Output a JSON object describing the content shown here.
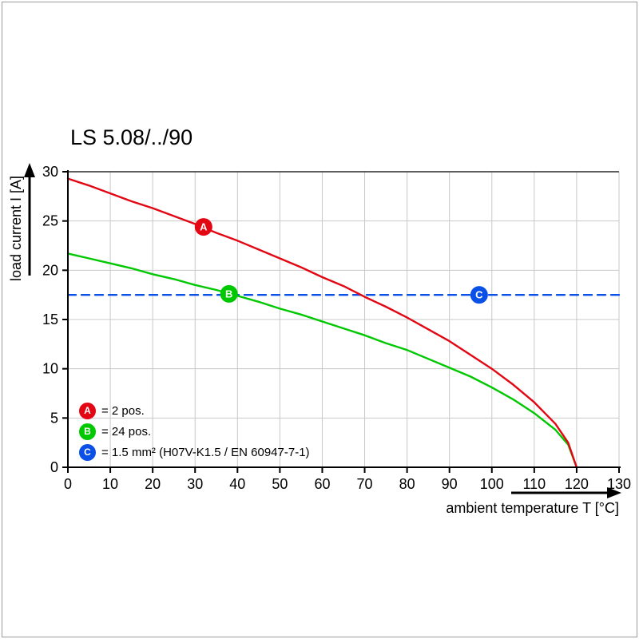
{
  "chart_data": {
    "type": "line",
    "title": "LS 5.08/../90",
    "xlabel": "ambient temperature T [°C]",
    "ylabel": "load current I [A]",
    "xlim": [
      0,
      130
    ],
    "ylim": [
      0,
      30
    ],
    "x_ticks": [
      0,
      10,
      20,
      30,
      40,
      50,
      60,
      70,
      80,
      90,
      100,
      110,
      120,
      130
    ],
    "y_ticks": [
      0,
      5,
      10,
      15,
      20,
      25,
      30
    ],
    "grid": true,
    "legend_position": "bottom-left-inside",
    "grid_color": "#c8c8c8",
    "axis_color": "#000000",
    "series": [
      {
        "name": "A",
        "label": "= 2 pos.",
        "color": "#e30613",
        "line_style": "solid",
        "marker": {
          "x": 32,
          "y": 24.4
        },
        "points": [
          [
            0,
            29.3
          ],
          [
            5,
            28.6
          ],
          [
            10,
            27.8
          ],
          [
            15,
            27
          ],
          [
            20,
            26.3
          ],
          [
            25,
            25.5
          ],
          [
            30,
            24.7
          ],
          [
            35,
            23.8
          ],
          [
            40,
            23
          ],
          [
            45,
            22.1
          ],
          [
            50,
            21.2
          ],
          [
            55,
            20.3
          ],
          [
            60,
            19.3
          ],
          [
            65,
            18.4
          ],
          [
            70,
            17.3
          ],
          [
            75,
            16.3
          ],
          [
            80,
            15.2
          ],
          [
            85,
            14
          ],
          [
            90,
            12.8
          ],
          [
            95,
            11.4
          ],
          [
            100,
            10
          ],
          [
            105,
            8.4
          ],
          [
            110,
            6.6
          ],
          [
            115,
            4.4
          ],
          [
            118,
            2.5
          ],
          [
            120,
            0
          ]
        ]
      },
      {
        "name": "B",
        "label": "= 24 pos.",
        "color": "#00c800",
        "line_style": "solid",
        "marker": {
          "x": 38,
          "y": 17.6
        },
        "points": [
          [
            0,
            21.7
          ],
          [
            5,
            21.2
          ],
          [
            10,
            20.7
          ],
          [
            15,
            20.2
          ],
          [
            20,
            19.6
          ],
          [
            25,
            19.1
          ],
          [
            30,
            18.5
          ],
          [
            35,
            18
          ],
          [
            40,
            17.4
          ],
          [
            45,
            16.8
          ],
          [
            50,
            16.1
          ],
          [
            55,
            15.5
          ],
          [
            60,
            14.8
          ],
          [
            65,
            14.1
          ],
          [
            70,
            13.4
          ],
          [
            75,
            12.6
          ],
          [
            80,
            11.9
          ],
          [
            85,
            11
          ],
          [
            90,
            10.1
          ],
          [
            95,
            9.2
          ],
          [
            100,
            8.1
          ],
          [
            105,
            6.9
          ],
          [
            110,
            5.5
          ],
          [
            115,
            3.8
          ],
          [
            118,
            2.3
          ],
          [
            120,
            0
          ]
        ]
      },
      {
        "name": "C",
        "label": "= 1.5 mm² (H07V-K1.5 / EN 60947-7-1)",
        "color": "#0a50e6",
        "line_style": "dashed",
        "marker": {
          "x": 97,
          "y": 17.5
        },
        "points": [
          [
            0,
            17.5
          ],
          [
            130,
            17.5
          ]
        ]
      }
    ]
  }
}
